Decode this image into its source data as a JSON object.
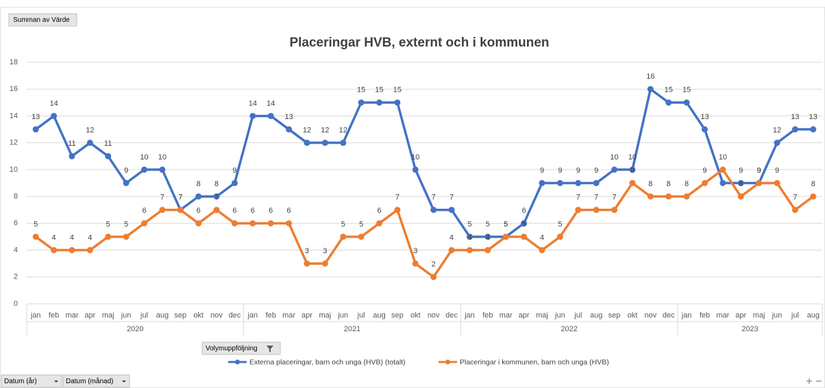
{
  "pivot": {
    "value_field": "Summan av Värde",
    "legend_field": "Volymuppföljning",
    "axis_fields": [
      "Datum (år)",
      "Datum (månad)"
    ]
  },
  "chart_data": {
    "type": "line",
    "title": "Placeringar HVB, externt och i kommunen",
    "groups": [
      {
        "name": "2020",
        "categories": [
          "jan",
          "feb",
          "mar",
          "apr",
          "maj",
          "jun",
          "jul",
          "aug",
          "sep",
          "okt",
          "nov",
          "dec"
        ]
      },
      {
        "name": "2021",
        "categories": [
          "jan",
          "feb",
          "mar",
          "apr",
          "maj",
          "jun",
          "jul",
          "aug",
          "sep",
          "okt",
          "nov",
          "dec"
        ]
      },
      {
        "name": "2022",
        "categories": [
          "jan",
          "feb",
          "mar",
          "apr",
          "maj",
          "jun",
          "jul",
          "aug",
          "sep",
          "okt",
          "nov",
          "dec"
        ]
      },
      {
        "name": "2023",
        "categories": [
          "jan",
          "feb",
          "mar",
          "apr",
          "maj",
          "jun",
          "jul",
          "aug"
        ]
      }
    ],
    "series": [
      {
        "name": "Externa placeringar, barn och unga (HVB) (totalt)",
        "color": "#4472c4",
        "values": [
          13,
          14,
          11,
          12,
          11,
          9,
          10,
          10,
          7,
          8,
          8,
          9,
          14,
          14,
          13,
          12,
          12,
          12,
          15,
          15,
          15,
          10,
          7,
          7,
          5,
          5,
          5,
          6,
          9,
          9,
          9,
          9,
          10,
          10,
          16,
          15,
          15,
          13,
          9,
          9,
          9,
          12,
          13,
          13
        ]
      },
      {
        "name": "Placeringar i kommunen, barn och unga (HVB)",
        "color": "#ed7d31",
        "values": [
          5,
          4,
          4,
          4,
          5,
          5,
          6,
          7,
          7,
          6,
          7,
          6,
          6,
          6,
          6,
          3,
          3,
          5,
          5,
          6,
          7,
          3,
          2,
          4,
          4,
          4,
          5,
          5,
          4,
          5,
          7,
          7,
          7,
          9,
          8,
          8,
          8,
          9,
          10,
          8,
          9,
          9,
          7,
          8
        ]
      }
    ],
    "ylim": [
      0,
      18
    ],
    "yticks": [
      0,
      2,
      4,
      6,
      8,
      10,
      12,
      14,
      16,
      18
    ],
    "grid": true,
    "data_labels": true,
    "legend": "bottom"
  }
}
